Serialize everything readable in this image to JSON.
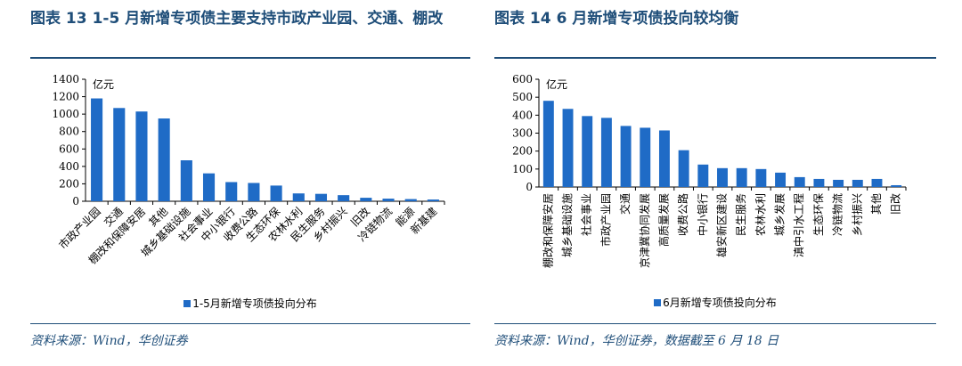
{
  "colors": {
    "bar": "#1f6bc6",
    "title": "#1f4e79",
    "rule": "#1f4e79"
  },
  "left": {
    "tag": "图表 13",
    "title": "1-5 月新增专项债主要支持市政产业园、交通、棚改",
    "source": "资料来源：Wind，华创证券",
    "chart_data": {
      "type": "bar",
      "unit_label": "亿元",
      "categories": [
        "市政产业园",
        "交通",
        "棚改和保障安居",
        "其他",
        "城乡基础设施",
        "社会事业",
        "中小银行",
        "收费公路",
        "生态环保",
        "农林水利",
        "民生服务",
        "乡村振兴",
        "旧改",
        "冷链物流",
        "能源",
        "新基建"
      ],
      "series": [
        {
          "name": "1-5月新增专项债投向分布",
          "values": [
            1180,
            1070,
            1030,
            950,
            470,
            320,
            220,
            210,
            180,
            90,
            85,
            70,
            40,
            30,
            25,
            20
          ]
        }
      ],
      "ylim": [
        0,
        1400
      ],
      "yticks": [
        0,
        200,
        400,
        600,
        800,
        1000,
        1200,
        1400
      ],
      "grid": false,
      "legend_position": "bottom"
    }
  },
  "right": {
    "tag": "图表 14",
    "title": "6 月新增专项债投向较均衡",
    "source": "资料来源：Wind，华创证券，数据截至 6 月 18 日",
    "chart_data": {
      "type": "bar",
      "unit_label": "亿元",
      "categories": [
        "棚改和保障安居",
        "城乡基础设施",
        "社会事业",
        "市政产业园",
        "交通",
        "京津冀协同发展",
        "高质量发展",
        "收费公路",
        "中小银行",
        "雄安新区建设",
        "民生服务",
        "农林水利",
        "城乡发展",
        "滇中引水工程",
        "生态环保",
        "冷链物流",
        "乡村振兴",
        "其他",
        "旧改"
      ],
      "series": [
        {
          "name": "6月新增专项债投向分布",
          "values": [
            480,
            435,
            395,
            385,
            340,
            330,
            315,
            205,
            125,
            105,
            105,
            100,
            80,
            55,
            45,
            40,
            40,
            45,
            10
          ]
        }
      ],
      "ylim": [
        0,
        600
      ],
      "yticks": [
        0,
        100,
        200,
        300,
        400,
        500,
        600
      ],
      "grid": false,
      "legend_position": "bottom"
    }
  }
}
